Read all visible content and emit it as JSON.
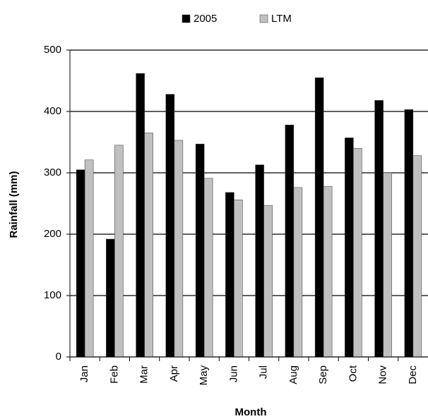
{
  "chart_data": {
    "type": "bar",
    "categories": [
      "Jan",
      "Feb",
      "Mar",
      "Apr",
      "May",
      "Jun",
      "Jul",
      "Aug",
      "Sep",
      "Oct",
      "Nov",
      "Dec"
    ],
    "series": [
      {
        "name": "2005",
        "color": "#000000",
        "values": [
          305,
          192,
          462,
          428,
          347,
          268,
          313,
          378,
          455,
          357,
          418,
          403
        ]
      },
      {
        "name": "LTM",
        "color": "#c0c0c0",
        "values": [
          321,
          345,
          365,
          353,
          291,
          256,
          247,
          276,
          278,
          340,
          300,
          328
        ]
      }
    ],
    "x_label": "Month",
    "y_label": "Rainfall (mm)",
    "ylim": [
      0,
      500
    ],
    "yticks": [
      0,
      100,
      200,
      300,
      400,
      500
    ],
    "grid": true,
    "legend": "top"
  }
}
